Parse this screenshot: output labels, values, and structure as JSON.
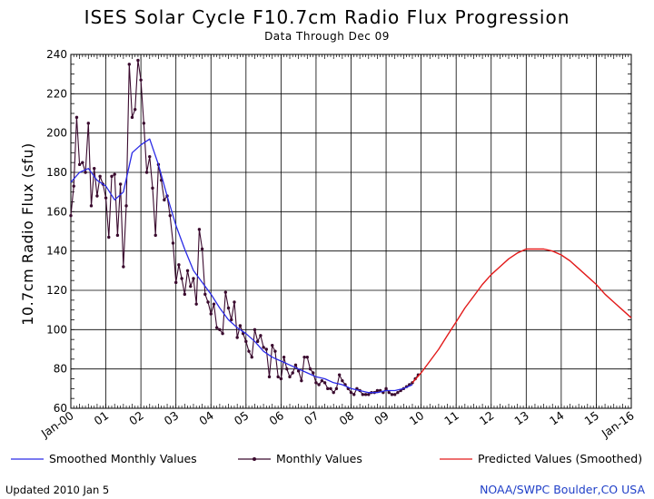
{
  "header": {
    "title": "ISES Solar Cycle F10.7cm Radio Flux Progression",
    "subtitle": "Data Through Dec 09"
  },
  "legend": {
    "smoothed": "Smoothed Monthly Values",
    "monthly": "Monthly Values",
    "predicted": "Predicted Values (Smoothed)"
  },
  "footer": {
    "updated": "Updated 2010 Jan  5",
    "credit": "NOAA/SWPC Boulder,CO USA"
  },
  "colors": {
    "smoothed": "#2a2ae6",
    "monthly": "#3a0a2e",
    "predicted": "#e21a1a",
    "grid": "#000000"
  },
  "chart_data": {
    "type": "line",
    "title": "ISES Solar Cycle F10.7cm Radio Flux Progression",
    "subtitle": "Data Through Dec 09",
    "ylabel": "10.7cm Radio Flux (sfu)",
    "xlabel": "",
    "x_tick_labels": [
      "Jan-00",
      "01",
      "02",
      "03",
      "04",
      "05",
      "06",
      "07",
      "08",
      "09",
      "10",
      "11",
      "12",
      "13",
      "14",
      "15",
      "Jan-16"
    ],
    "y_ticks": [
      60,
      80,
      100,
      120,
      140,
      160,
      180,
      200,
      220,
      240
    ],
    "xlim": [
      2000.0,
      2016.0
    ],
    "ylim": [
      60,
      240
    ],
    "grid": true,
    "legend_position": "bottom",
    "series": [
      {
        "name": "Monthly Values",
        "x": [
          2000.0,
          2000.083,
          2000.167,
          2000.25,
          2000.333,
          2000.417,
          2000.5,
          2000.583,
          2000.667,
          2000.75,
          2000.833,
          2000.917,
          2001.0,
          2001.083,
          2001.167,
          2001.25,
          2001.333,
          2001.417,
          2001.5,
          2001.583,
          2001.667,
          2001.75,
          2001.833,
          2001.917,
          2002.0,
          2002.083,
          2002.167,
          2002.25,
          2002.333,
          2002.417,
          2002.5,
          2002.583,
          2002.667,
          2002.75,
          2002.833,
          2002.917,
          2003.0,
          2003.083,
          2003.167,
          2003.25,
          2003.333,
          2003.417,
          2003.5,
          2003.583,
          2003.667,
          2003.75,
          2003.833,
          2003.917,
          2004.0,
          2004.083,
          2004.167,
          2004.25,
          2004.333,
          2004.417,
          2004.5,
          2004.583,
          2004.667,
          2004.75,
          2004.833,
          2004.917,
          2005.0,
          2005.083,
          2005.167,
          2005.25,
          2005.333,
          2005.417,
          2005.5,
          2005.583,
          2005.667,
          2005.75,
          2005.833,
          2005.917,
          2006.0,
          2006.083,
          2006.167,
          2006.25,
          2006.333,
          2006.417,
          2006.5,
          2006.583,
          2006.667,
          2006.75,
          2006.833,
          2006.917,
          2007.0,
          2007.083,
          2007.167,
          2007.25,
          2007.333,
          2007.417,
          2007.5,
          2007.583,
          2007.667,
          2007.75,
          2007.833,
          2007.917,
          2008.0,
          2008.083,
          2008.167,
          2008.25,
          2008.333,
          2008.417,
          2008.5,
          2008.583,
          2008.667,
          2008.75,
          2008.833,
          2008.917,
          2009.0,
          2009.083,
          2009.167,
          2009.25,
          2009.333,
          2009.417,
          2009.5,
          2009.583,
          2009.667,
          2009.75,
          2009.833,
          2009.917
        ],
        "y": [
          158,
          173,
          208,
          184,
          185,
          180,
          205,
          163,
          182,
          168,
          178,
          174,
          167,
          147,
          178,
          179,
          148,
          174,
          132,
          163,
          235,
          208,
          212,
          237,
          227,
          205,
          180,
          188,
          172,
          148,
          184,
          176,
          166,
          168,
          158,
          144,
          124,
          133,
          126,
          118,
          130,
          122,
          126,
          113,
          151,
          141,
          118,
          114,
          108,
          113,
          101,
          100,
          98,
          119,
          111,
          105,
          114,
          96,
          102,
          98,
          94,
          89,
          86,
          100,
          94,
          97,
          91,
          90,
          76,
          92,
          89,
          76,
          75,
          86,
          80,
          76,
          78,
          82,
          79,
          74,
          86,
          86,
          80,
          78,
          73,
          72,
          74,
          73,
          70,
          70,
          68,
          70,
          77,
          74,
          72,
          70,
          68,
          67,
          70,
          69,
          67,
          67,
          67,
          68,
          68,
          69,
          69,
          68,
          70,
          68,
          67,
          67,
          68,
          69,
          70,
          71,
          72,
          73,
          75,
          77
        ]
      },
      {
        "name": "Smoothed Monthly Values",
        "x": [
          2000.0,
          2000.25,
          2000.5,
          2000.75,
          2001.0,
          2001.25,
          2001.5,
          2001.75,
          2002.0,
          2002.25,
          2002.5,
          2002.75,
          2003.0,
          2003.25,
          2003.5,
          2003.75,
          2004.0,
          2004.25,
          2004.5,
          2004.75,
          2005.0,
          2005.25,
          2005.5,
          2005.75,
          2006.0,
          2006.25,
          2006.5,
          2006.75,
          2007.0,
          2007.25,
          2007.5,
          2007.75,
          2008.0,
          2008.25,
          2008.5,
          2008.75,
          2009.0,
          2009.25,
          2009.5,
          2009.75
        ],
        "y": [
          175,
          180,
          182,
          176,
          173,
          166,
          170,
          190,
          194,
          197,
          184,
          168,
          153,
          141,
          130,
          124,
          118,
          111,
          105,
          101,
          98,
          94,
          89,
          86,
          84,
          82,
          80,
          78,
          76,
          75,
          73,
          72,
          70,
          69,
          68,
          68,
          69,
          69,
          70,
          72
        ]
      },
      {
        "name": "Predicted Values (Smoothed)",
        "x": [
          2009.75,
          2010.0,
          2010.25,
          2010.5,
          2010.75,
          2011.0,
          2011.25,
          2011.5,
          2011.75,
          2012.0,
          2012.25,
          2012.5,
          2012.75,
          2013.0,
          2013.25,
          2013.5,
          2013.75,
          2014.0,
          2014.25,
          2014.5,
          2014.75,
          2015.0,
          2015.25,
          2015.5,
          2015.75,
          2016.0
        ],
        "y": [
          73,
          78,
          84,
          90,
          97,
          104,
          111,
          117,
          123,
          128,
          132,
          136,
          139,
          141,
          141,
          141,
          140,
          138,
          135,
          131,
          127,
          123,
          118,
          114,
          110,
          106
        ]
      }
    ]
  }
}
